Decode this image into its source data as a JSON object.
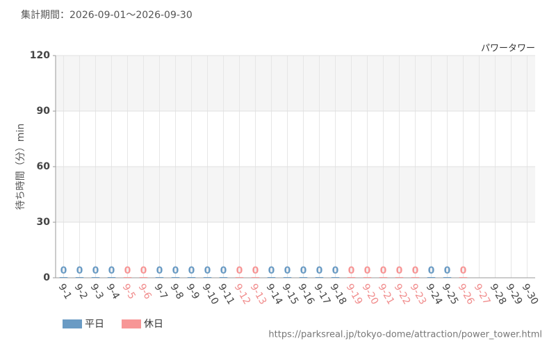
{
  "chart_data": {
    "type": "bar",
    "title": "集計期間：2026-09-01～2026-09-30",
    "subtitle": "パワータワー",
    "y_label": "待ち時間（分）min",
    "source": "https://parksreal.jp/tokyo-dome/attraction/power_tower.html",
    "categories": [
      "9-1",
      "9-2",
      "9-3",
      "9-4",
      "9-5",
      "9-6",
      "9-7",
      "9-8",
      "9-9",
      "9-10",
      "9-11",
      "9-12",
      "9-13",
      "9-14",
      "9-15",
      "9-16",
      "9-17",
      "9-18",
      "9-19",
      "9-20",
      "9-21",
      "9-22",
      "9-23",
      "9-24",
      "9-25",
      "9-26",
      "9-27",
      "9-28",
      "9-29",
      "9-30"
    ],
    "category_colors": [
      "#444",
      "#444",
      "#444",
      "#444",
      "#f08a8a",
      "#f08a8a",
      "#444",
      "#444",
      "#444",
      "#444",
      "#444",
      "#f08a8a",
      "#f08a8a",
      "#444",
      "#444",
      "#444",
      "#444",
      "#444",
      "#f08a8a",
      "#f08a8a",
      "#f08a8a",
      "#f08a8a",
      "#f08a8a",
      "#444",
      "#444",
      "#f08a8a",
      "#f08a8a",
      "#444",
      "#444",
      "#444"
    ],
    "series": [
      {
        "name": "平日",
        "color": "#6a9bc4",
        "values": [
          0,
          0,
          0,
          0,
          null,
          null,
          0,
          0,
          0,
          0,
          0,
          null,
          null,
          0,
          0,
          0,
          0,
          0,
          null,
          null,
          null,
          null,
          null,
          0,
          0,
          null,
          null,
          null,
          null,
          null
        ]
      },
      {
        "name": "休日",
        "color": "#f79696",
        "values": [
          null,
          null,
          null,
          null,
          0,
          0,
          null,
          null,
          null,
          null,
          null,
          0,
          0,
          null,
          null,
          null,
          null,
          null,
          0,
          0,
          0,
          0,
          0,
          null,
          null,
          0,
          null,
          null,
          null,
          null
        ]
      }
    ],
    "ylim": [
      0,
      120
    ],
    "yticks": [
      0,
      30,
      60,
      90,
      120
    ],
    "grid": true
  }
}
